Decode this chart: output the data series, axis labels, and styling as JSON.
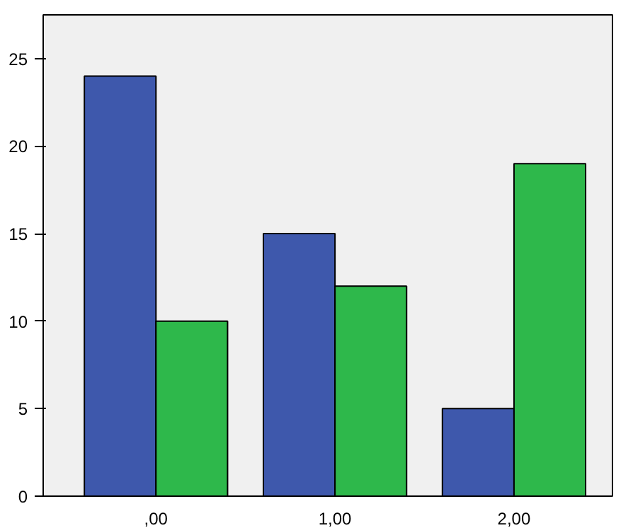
{
  "chart_data": {
    "type": "bar",
    "categories": [
      ",00",
      "1,00",
      "2,00"
    ],
    "series": [
      {
        "color": "#3e58ac",
        "values": [
          24,
          15,
          5
        ]
      },
      {
        "color": "#2eb84b",
        "values": [
          10,
          12,
          19
        ]
      }
    ],
    "ylim": [
      0,
      27.5
    ],
    "yticks": [
      0,
      5,
      10,
      15,
      20,
      25
    ],
    "grid": false
  }
}
